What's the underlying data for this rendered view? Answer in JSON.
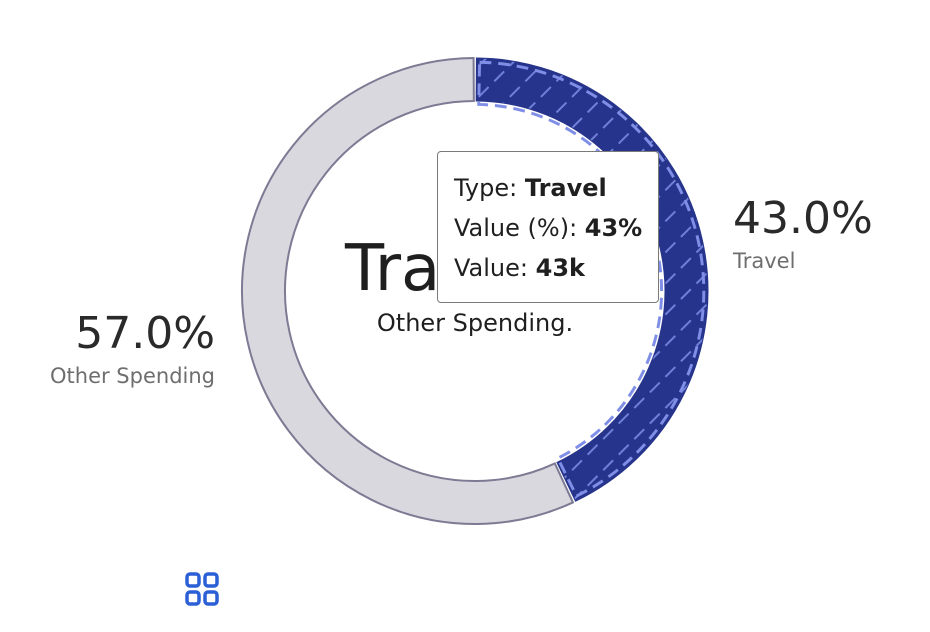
{
  "chart_data": {
    "type": "pie",
    "variant": "donut",
    "series": [
      {
        "name": "Other Spending",
        "value_pct": 57.0,
        "label": "57.0%",
        "color": "#d9d8df",
        "stroke": "#7d7a93",
        "pattern": "none"
      },
      {
        "name": "Travel",
        "value_pct": 43.0,
        "label": "43.0%",
        "color": "#27348b",
        "stroke": "#7f8ee6",
        "pattern": "diagonal-hatch"
      }
    ],
    "center": {
      "title": "Tra",
      "subtitle": "Other Spending."
    },
    "tooltip": {
      "type_label": "Type: ",
      "type_value": "Travel",
      "pct_label": "Value (%): ",
      "pct_value": "43%",
      "value_label": "Value: ",
      "value_value": "43k"
    }
  },
  "toolbar": {
    "icon": "grid-four-squares-icon",
    "icon_color": "#2b5fd6"
  }
}
